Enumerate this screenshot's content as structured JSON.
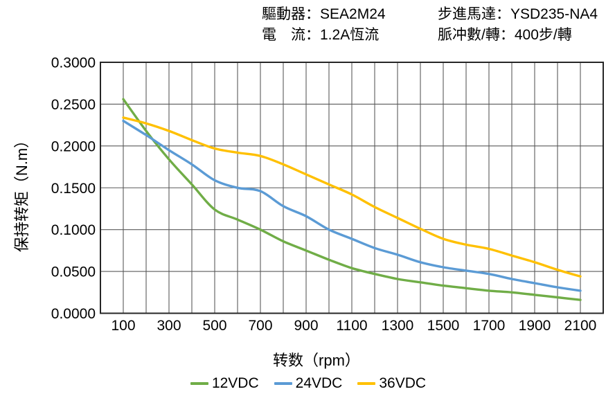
{
  "header": {
    "rows": [
      {
        "left": "驅動器：SEA2M24",
        "right": "步進馬達：YSD235-NA4"
      },
      {
        "left": "電　流：1.2A恆流",
        "right": "脈冲數/轉：400步/轉"
      }
    ]
  },
  "chart_data": {
    "type": "line",
    "title": "",
    "xlabel": "转数（rpm）",
    "ylabel": "保持转矩（N.m）",
    "xlim": [
      0,
      2200
    ],
    "ylim": [
      0,
      0.3
    ],
    "x_grid_step": 100,
    "y_grid_step": 0.05,
    "grid": true,
    "legend_position": "bottom",
    "x": [
      100,
      200,
      300,
      400,
      500,
      600,
      700,
      800,
      900,
      1000,
      1100,
      1200,
      1300,
      1400,
      1500,
      1600,
      1700,
      1800,
      1900,
      2000,
      2100
    ],
    "series": [
      {
        "name": "12VDC",
        "color": "#70AD47",
        "values": [
          0.256,
          0.218,
          0.184,
          0.154,
          0.124,
          0.112,
          0.1,
          0.086,
          0.075,
          0.064,
          0.054,
          0.047,
          0.041,
          0.037,
          0.033,
          0.03,
          0.027,
          0.025,
          0.022,
          0.019,
          0.016
        ]
      },
      {
        "name": "24VDC",
        "color": "#5B9BD5",
        "values": [
          0.23,
          0.213,
          0.195,
          0.178,
          0.159,
          0.15,
          0.146,
          0.128,
          0.116,
          0.1,
          0.089,
          0.078,
          0.07,
          0.061,
          0.055,
          0.051,
          0.047,
          0.041,
          0.036,
          0.031,
          0.027
        ]
      },
      {
        "name": "36VDC",
        "color": "#FFC000",
        "values": [
          0.234,
          0.227,
          0.218,
          0.207,
          0.197,
          0.192,
          0.188,
          0.178,
          0.166,
          0.154,
          0.142,
          0.127,
          0.114,
          0.101,
          0.089,
          0.082,
          0.077,
          0.069,
          0.061,
          0.052,
          0.044
        ]
      }
    ],
    "x_ticks": [
      {
        "value": 100,
        "label": "100"
      },
      {
        "value": 300,
        "label": "300"
      },
      {
        "value": 500,
        "label": "500"
      },
      {
        "value": 700,
        "label": "700"
      },
      {
        "value": 900,
        "label": "900"
      },
      {
        "value": 1100,
        "label": "1100"
      },
      {
        "value": 1300,
        "label": "1300"
      },
      {
        "value": 1500,
        "label": "1500"
      },
      {
        "value": 1700,
        "label": "1700"
      },
      {
        "value": 1900,
        "label": "1900"
      },
      {
        "value": 2100,
        "label": "2100"
      }
    ],
    "y_ticks": [
      {
        "value": 0.0,
        "label": "0.0000"
      },
      {
        "value": 0.05,
        "label": "0.0500"
      },
      {
        "value": 0.1,
        "label": "0.1000"
      },
      {
        "value": 0.15,
        "label": "0.1500"
      },
      {
        "value": 0.2,
        "label": "0.2000"
      },
      {
        "value": 0.25,
        "label": "0.2500"
      },
      {
        "value": 0.3,
        "label": "0.3000"
      }
    ],
    "style": {
      "grid_color": "#595959",
      "frame_color": "#262626",
      "text_color": "#000000"
    }
  }
}
